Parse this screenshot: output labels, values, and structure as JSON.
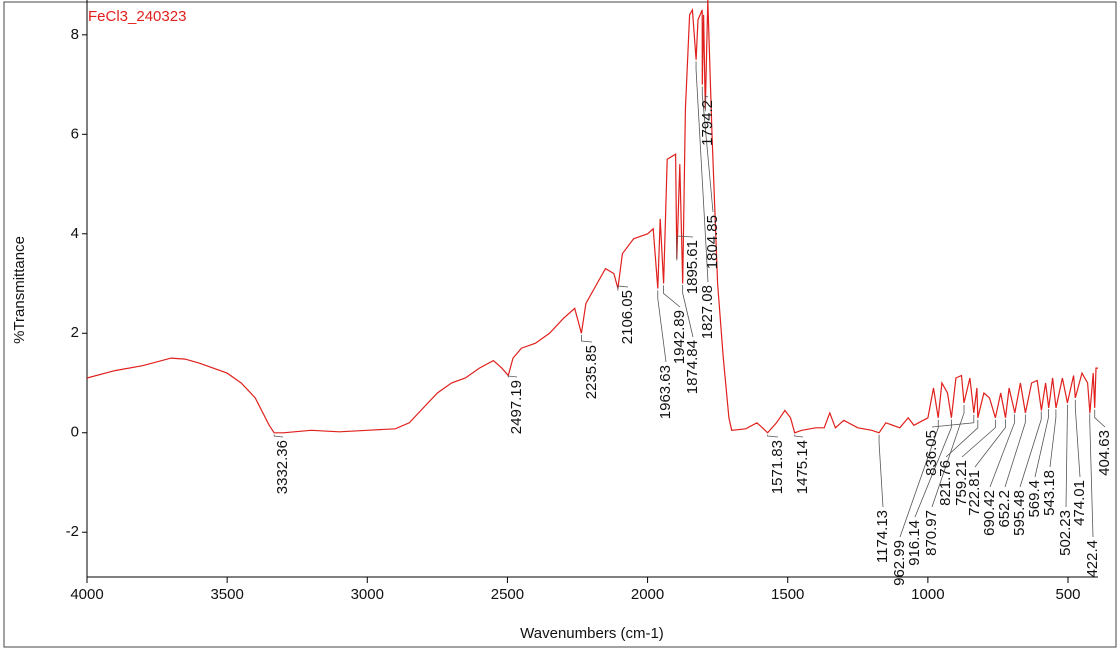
{
  "chart_data": {
    "type": "line",
    "xlabel": "Wavenumbers (cm-1)",
    "ylabel": "%Transmittance",
    "xlim": [
      4000,
      393
    ],
    "ylim": [
      -2.9,
      8.7
    ],
    "xticks": [
      4000,
      3500,
      3000,
      2500,
      2000,
      1500,
      1000,
      500
    ],
    "yticks": [
      -2,
      0,
      2,
      4,
      6,
      8
    ],
    "x": [
      4000,
      3900,
      3800,
      3700,
      3650,
      3600,
      3500,
      3450,
      3400,
      3350,
      3332,
      3300,
      3200,
      3100,
      3000,
      2900,
      2850,
      2800,
      2750,
      2700,
      2650,
      2600,
      2550,
      2520,
      2497,
      2480,
      2450,
      2400,
      2350,
      2300,
      2260,
      2236,
      2220,
      2180,
      2150,
      2120,
      2106,
      2090,
      2050,
      2000,
      1980,
      1963.6,
      1955,
      1942.9,
      1930,
      1900,
      1895.6,
      1885,
      1874.8,
      1865,
      1850,
      1840,
      1827,
      1820,
      1805,
      1804.85,
      1800,
      1794.2,
      1785,
      1770,
      1750,
      1730,
      1710,
      1700,
      1650,
      1610,
      1590,
      1571.8,
      1540,
      1510,
      1490,
      1475,
      1450,
      1400,
      1370,
      1350,
      1330,
      1300,
      1250,
      1200,
      1174,
      1150,
      1100,
      1070,
      1050,
      1000,
      980,
      963,
      950,
      930,
      916,
      900,
      880,
      871,
      850,
      836,
      825,
      821.76,
      800,
      780,
      759,
      740,
      723,
      710,
      690,
      670,
      652,
      630,
      610,
      595,
      580,
      569,
      555,
      543,
      520,
      502,
      480,
      474,
      450,
      430,
      422,
      410,
      404.6,
      400,
      393
    ],
    "series": [
      {
        "name": "FeCl3_240323",
        "color": "#e0201c",
        "values": [
          1.1,
          1.25,
          1.35,
          1.5,
          1.48,
          1.4,
          1.2,
          1.0,
          0.7,
          0.15,
          0.0,
          0.0,
          0.05,
          0.02,
          0.05,
          0.08,
          0.2,
          0.5,
          0.8,
          1.0,
          1.1,
          1.3,
          1.45,
          1.3,
          1.15,
          1.5,
          1.7,
          1.8,
          2.0,
          2.3,
          2.5,
          2.0,
          2.6,
          3.0,
          3.3,
          3.2,
          2.9,
          3.6,
          3.9,
          4.0,
          4.1,
          2.9,
          4.3,
          3.0,
          5.5,
          5.6,
          3.5,
          5.4,
          3.0,
          6.5,
          8.4,
          8.5,
          7.5,
          8.3,
          8.5,
          7.0,
          8.4,
          6.5,
          8.7,
          6.0,
          3.0,
          1.5,
          0.3,
          0.05,
          0.08,
          0.2,
          0.1,
          0.0,
          0.2,
          0.45,
          0.3,
          0.0,
          0.05,
          0.1,
          0.1,
          0.4,
          0.1,
          0.25,
          0.1,
          0.05,
          0.0,
          0.2,
          0.1,
          0.3,
          0.15,
          0.3,
          0.9,
          0.3,
          1.0,
          0.8,
          0.3,
          1.1,
          1.15,
          0.6,
          1.1,
          0.4,
          0.9,
          0.3,
          0.8,
          0.7,
          0.3,
          0.8,
          0.3,
          0.9,
          0.4,
          1.0,
          0.4,
          1.0,
          1.05,
          0.45,
          1.0,
          0.5,
          1.1,
          0.5,
          1.1,
          0.6,
          1.15,
          0.7,
          1.2,
          1.0,
          0.4,
          1.2,
          0.5,
          1.3,
          1.3
        ]
      }
    ],
    "peaks": [
      3332.36,
      2497.19,
      2235.85,
      2106.05,
      1963.63,
      1942.89,
      1895.61,
      1874.84,
      1827.08,
      1804.85,
      1794.2,
      1571.83,
      1475.14,
      1174.13,
      962.99,
      916.14,
      870.97,
      836.05,
      821.76,
      759.21,
      722.81,
      690.42,
      652.2,
      595.48,
      569.4,
      543.18,
      502.23,
      474.01,
      422.4,
      404.63
    ]
  }
}
